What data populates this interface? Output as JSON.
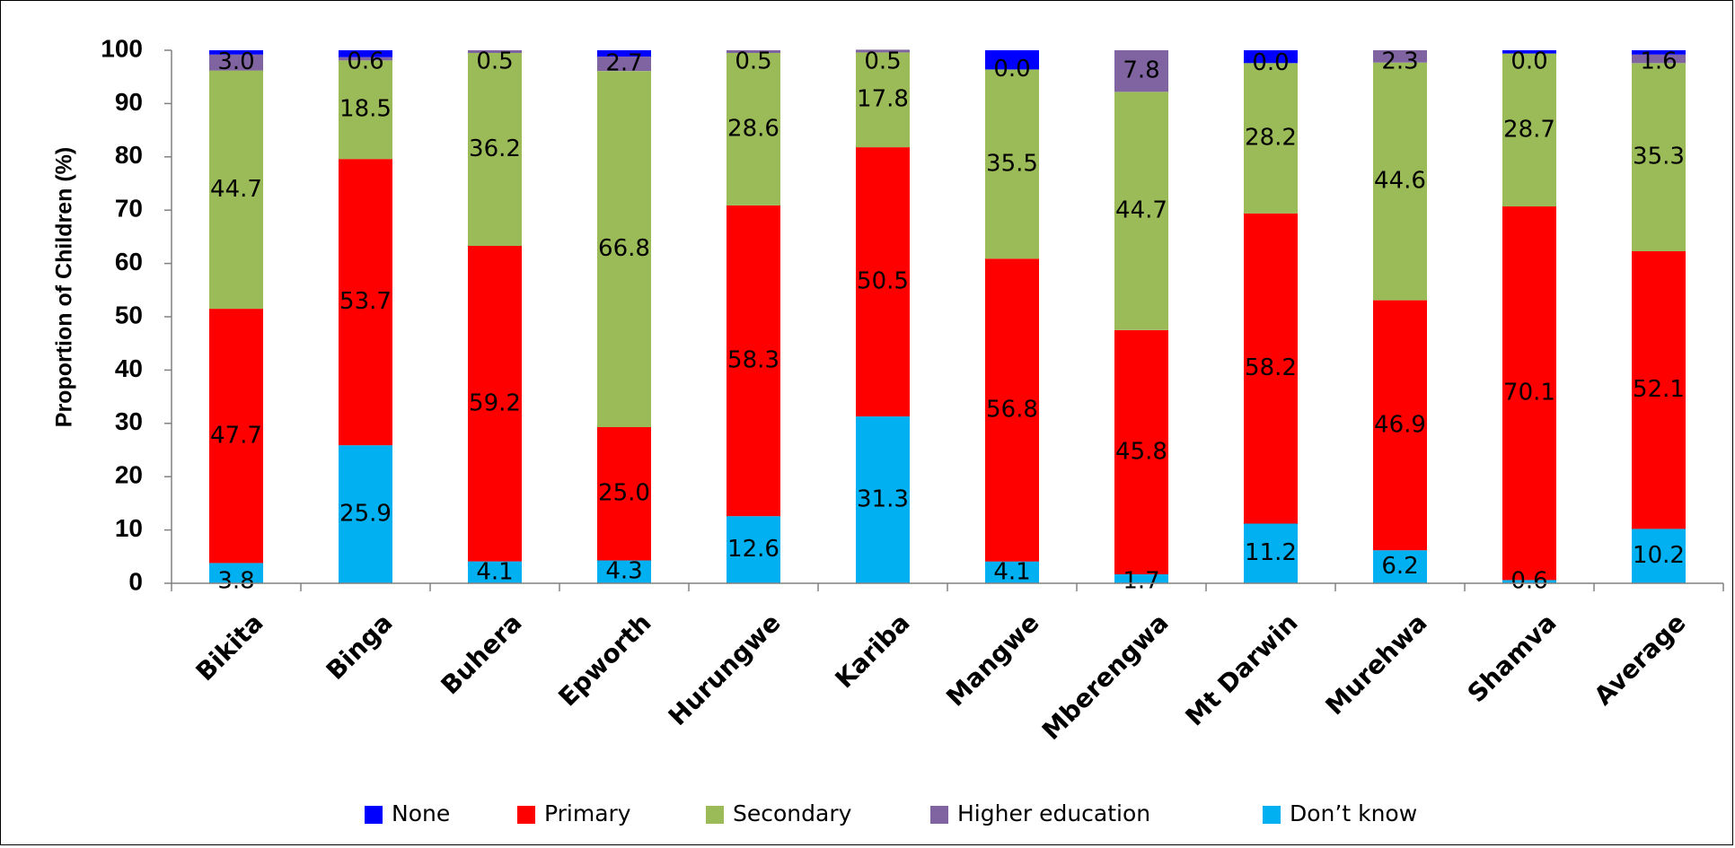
{
  "chart_data": {
    "type": "bar",
    "stacked": true,
    "title": "",
    "xlabel": "",
    "ylabel": "Proportion of Children (%)",
    "ylim": [
      0,
      100
    ],
    "yticks": [
      "0",
      "10",
      "20",
      "30",
      "40",
      "50",
      "60",
      "70",
      "80",
      "90",
      "100"
    ],
    "grid": false,
    "legend_position": "bottom",
    "categories": [
      "Bikita",
      "Binga",
      "Buhera",
      "Epworth",
      "Hurungwe",
      "Kariba",
      "Mangwe",
      "Mberengwa",
      "Mt Darwin",
      "Murehwa",
      "Shamva",
      "Average"
    ],
    "series": [
      {
        "name": "Don’t know",
        "color": "#00b0f0",
        "values": [
          3.8,
          25.9,
          4.1,
          4.3,
          12.6,
          31.3,
          4.1,
          1.7,
          11.2,
          6.2,
          0.6,
          10.2
        ],
        "labels": [
          "3.8",
          "25.9",
          "4.1",
          "4.3",
          "12.6",
          "31.3",
          "4.1",
          "1.7",
          "11.2",
          "6.2",
          "0.6",
          "10.2"
        ]
      },
      {
        "name": "Primary",
        "color": "#ff0000",
        "values": [
          47.7,
          53.7,
          59.2,
          25.0,
          58.3,
          50.5,
          56.8,
          45.8,
          58.2,
          46.9,
          70.1,
          52.1
        ],
        "labels": [
          "47.7",
          "53.7",
          "59.2",
          "25.0",
          "58.3",
          "50.5",
          "56.8",
          "45.8",
          "58.2",
          "46.9",
          "70.1",
          "52.1"
        ]
      },
      {
        "name": "Secondary",
        "color": "#9bbb59",
        "values": [
          44.7,
          18.5,
          36.2,
          66.8,
          28.6,
          17.8,
          35.5,
          44.7,
          28.2,
          44.6,
          28.7,
          35.3
        ],
        "labels": [
          "44.7",
          "18.5",
          "36.2",
          "66.8",
          "28.6",
          "17.8",
          "35.5",
          "44.7",
          "28.2",
          "44.6",
          "28.7",
          "35.3"
        ]
      },
      {
        "name": "Higher education",
        "color": "#8064a2",
        "values": [
          3.0,
          0.6,
          0.5,
          2.7,
          0.5,
          0.5,
          0.0,
          7.8,
          0.0,
          2.3,
          0.0,
          1.6
        ],
        "labels": [
          "3.0",
          "0.6",
          "0.5",
          "2.7",
          "0.5",
          "0.5",
          "0.0",
          "7.8",
          "0.0",
          "2.3",
          "0.0",
          "1.6"
        ]
      },
      {
        "name": "None",
        "color": "#0000ff",
        "values": [
          0.8,
          1.3,
          0.0,
          1.2,
          0.0,
          0.0,
          3.6,
          0.0,
          2.4,
          0.0,
          0.6,
          0.8
        ]
      }
    ],
    "legend_order": [
      "None",
      "Primary",
      "Secondary",
      "Higher education",
      "Don’t know"
    ]
  }
}
